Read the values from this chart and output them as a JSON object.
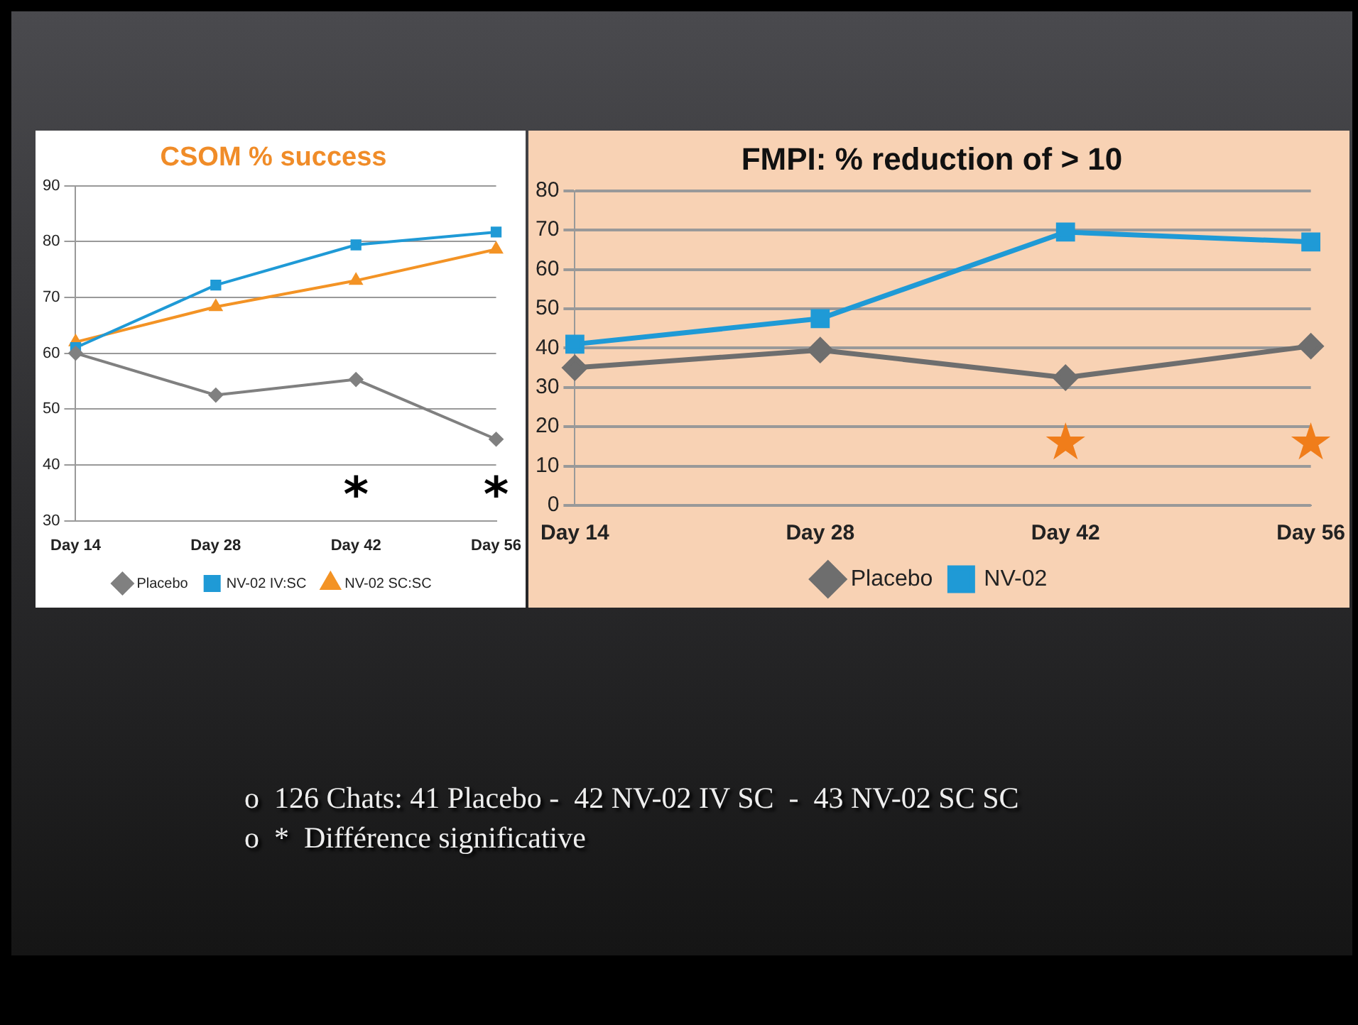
{
  "chart_data": [
    {
      "type": "line",
      "title": "CSOM % success",
      "categories": [
        "Day 14",
        "Day 28",
        "Day 42",
        "Day 56"
      ],
      "series": [
        {
          "name": "Placebo",
          "color": "#808080",
          "values": [
            60,
            52.5,
            55.3,
            44.6
          ],
          "marker": "diamond"
        },
        {
          "name": "NV-02 IV:SC",
          "color": "#1f9ad6",
          "values": [
            61,
            72.2,
            79.4,
            81.7
          ],
          "marker": "square"
        },
        {
          "name": "NV-02 SC:SC",
          "color": "#f39325",
          "values": [
            62,
            68.3,
            73,
            78.6
          ],
          "marker": "triangle"
        }
      ],
      "ylim": [
        30,
        90
      ],
      "yticks": [
        30,
        40,
        50,
        60,
        70,
        80,
        90
      ],
      "grid": "y",
      "legend": "bottom",
      "line_style": "solid",
      "annotations": [
        "*",
        "*"
      ]
    },
    {
      "type": "line",
      "title": "FMPI: % reduction of > 10",
      "categories": [
        "Day 14",
        "Day 28",
        "Day 42",
        "Day 56"
      ],
      "series": [
        {
          "name": "Placebo",
          "color": "#6e6e6e",
          "values": [
            35,
            39.5,
            32.5,
            40.5
          ],
          "marker": "diamond"
        },
        {
          "name": "NV-02",
          "color": "#1f9ad6",
          "values": [
            41,
            47.5,
            69.5,
            67
          ],
          "marker": "square"
        }
      ],
      "ylim": [
        0,
        80
      ],
      "yticks": [
        0,
        10,
        20,
        30,
        40,
        50,
        60,
        70,
        80
      ],
      "grid": "y",
      "legend": "bottom",
      "line_style": "solid",
      "annotations": [
        "★",
        "★"
      ]
    },
    {
      "type": "other",
      "annotations": [
        "o  126 Chats: 41 Placebo -  42 NV-02 IV SC  -  43 NV-02 SC SC",
        "o  *  Différence significative"
      ]
    }
  ]
}
